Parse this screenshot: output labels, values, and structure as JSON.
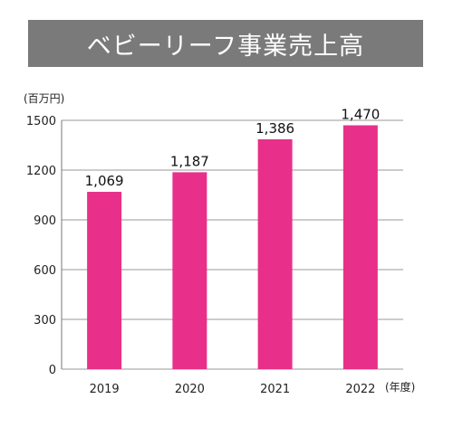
{
  "chart_data": {
    "type": "bar",
    "title": "ベビーリーフ事業売上高",
    "ylabel": "(百万円)",
    "xlabel": "(年度)",
    "categories": [
      "2019",
      "2020",
      "2021",
      "2022"
    ],
    "values": [
      1069,
      1187,
      1386,
      1470
    ],
    "value_labels": [
      "1,069",
      "1,187",
      "1,386",
      "1,470"
    ],
    "yticks": [
      0,
      300,
      600,
      900,
      1200,
      1500
    ],
    "ylim": [
      0,
      1500
    ],
    "grid": true,
    "colors": {
      "bar": "#e8308a",
      "grid": "#9a9a9a",
      "title_bg": "#7a7a7a",
      "title_text": "#ffffff"
    }
  }
}
